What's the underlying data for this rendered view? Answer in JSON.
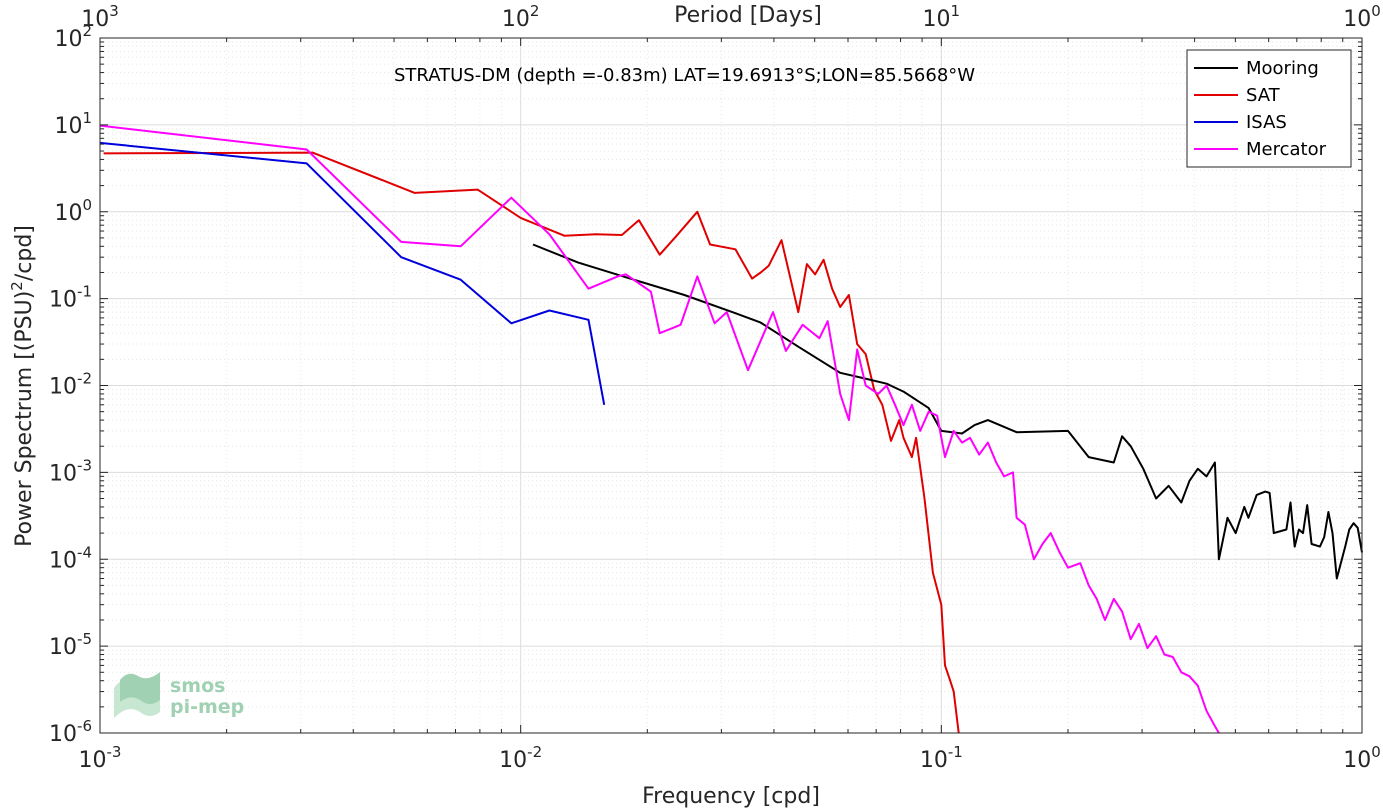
{
  "chart_data": {
    "type": "line",
    "title": "STRATUS-DM (depth =-0.83m) LAT=19.6913°S;LON=85.5668°W",
    "xlabel": "Frequency [cpd]",
    "ylabel_main": "Power Spectrum [(PSU)",
    "ylabel_sup": "2",
    "ylabel_tail": "/cpd]",
    "top_xlabel": "Period [Days]",
    "xscale": "log",
    "yscale": "log",
    "xlim": [
      0.001,
      1
    ],
    "ylim": [
      1e-06,
      100
    ],
    "grid": true,
    "legend_position": "top-right",
    "x_ticks": [
      {
        "value": 0.001,
        "base": "10",
        "exp": "-3"
      },
      {
        "value": 0.01,
        "base": "10",
        "exp": "-2"
      },
      {
        "value": 0.1,
        "base": "10",
        "exp": "-1"
      },
      {
        "value": 1,
        "base": "10",
        "exp": "0"
      }
    ],
    "y_ticks": [
      {
        "value": 1e-06,
        "base": "10",
        "exp": "-6"
      },
      {
        "value": 1e-05,
        "base": "10",
        "exp": "-5"
      },
      {
        "value": 0.0001,
        "base": "10",
        "exp": "-4"
      },
      {
        "value": 0.001,
        "base": "10",
        "exp": "-3"
      },
      {
        "value": 0.01,
        "base": "10",
        "exp": "-2"
      },
      {
        "value": 0.1,
        "base": "10",
        "exp": "-1"
      },
      {
        "value": 1,
        "base": "10",
        "exp": "0"
      },
      {
        "value": 10,
        "base": "10",
        "exp": "1"
      },
      {
        "value": 100,
        "base": "10",
        "exp": "2"
      }
    ],
    "top_ticks": [
      {
        "value": 0.001,
        "base": "10",
        "exp": "3"
      },
      {
        "value": 0.01,
        "base": "10",
        "exp": "2"
      },
      {
        "value": 0.1,
        "base": "10",
        "exp": "1"
      },
      {
        "value": 1,
        "base": "10",
        "exp": "0"
      }
    ],
    "series": [
      {
        "name": "Mooring",
        "color": "#000000",
        "points": [
          [
            0.0107,
            0.42
          ],
          [
            0.0137,
            0.26
          ],
          [
            0.0182,
            0.17
          ],
          [
            0.0245,
            0.11
          ],
          [
            0.0324,
            0.068
          ],
          [
            0.0372,
            0.053
          ],
          [
            0.0457,
            0.028
          ],
          [
            0.0575,
            0.014
          ],
          [
            0.066,
            0.012
          ],
          [
            0.0741,
            0.0105
          ],
          [
            0.0813,
            0.0085
          ],
          [
            0.0933,
            0.0055
          ],
          [
            0.1,
            0.003
          ],
          [
            0.112,
            0.0028
          ],
          [
            0.12,
            0.0035
          ],
          [
            0.129,
            0.004
          ],
          [
            0.151,
            0.0029
          ],
          [
            0.2,
            0.003
          ],
          [
            0.224,
            0.0015
          ],
          [
            0.257,
            0.0013
          ],
          [
            0.269,
            0.0026
          ],
          [
            0.282,
            0.002
          ],
          [
            0.302,
            0.0011
          ],
          [
            0.324,
            0.0005
          ],
          [
            0.347,
            0.0007
          ],
          [
            0.372,
            0.00045
          ],
          [
            0.389,
            0.0008
          ],
          [
            0.407,
            0.0011
          ],
          [
            0.427,
            0.0009
          ],
          [
            0.447,
            0.0013
          ],
          [
            0.457,
            0.0001
          ],
          [
            0.479,
            0.0003
          ],
          [
            0.501,
            0.0002
          ],
          [
            0.525,
            0.0004
          ],
          [
            0.537,
            0.0003
          ],
          [
            0.562,
            0.00055
          ],
          [
            0.589,
            0.0006
          ],
          [
            0.603,
            0.00058
          ],
          [
            0.617,
            0.0002
          ],
          [
            0.661,
            0.00022
          ],
          [
            0.676,
            0.00045
          ],
          [
            0.692,
            0.00014
          ],
          [
            0.708,
            0.00022
          ],
          [
            0.724,
            0.0002
          ],
          [
            0.741,
            0.00042
          ],
          [
            0.759,
            0.00015
          ],
          [
            0.794,
            0.00014
          ],
          [
            0.813,
            0.00018
          ],
          [
            0.832,
            0.00035
          ],
          [
            0.851,
            0.0002
          ],
          [
            0.871,
            6e-05
          ],
          [
            0.912,
            0.00014
          ],
          [
            0.933,
            0.00022
          ],
          [
            0.955,
            0.00026
          ],
          [
            0.977,
            0.00023
          ],
          [
            1.0,
            0.00012
          ]
        ]
      },
      {
        "name": "SAT",
        "color": "#e00000",
        "points": [
          [
            0.00102,
            4.7
          ],
          [
            0.0032,
            4.8
          ],
          [
            0.0056,
            1.65
          ],
          [
            0.0079,
            1.8
          ],
          [
            0.01,
            0.85
          ],
          [
            0.0127,
            0.53
          ],
          [
            0.0151,
            0.55
          ],
          [
            0.0174,
            0.54
          ],
          [
            0.0191,
            0.8
          ],
          [
            0.0214,
            0.32
          ],
          [
            0.0234,
            0.52
          ],
          [
            0.0263,
            1.0
          ],
          [
            0.0282,
            0.42
          ],
          [
            0.0324,
            0.37
          ],
          [
            0.0355,
            0.17
          ],
          [
            0.0372,
            0.2
          ],
          [
            0.0389,
            0.24
          ],
          [
            0.0417,
            0.47
          ],
          [
            0.0457,
            0.07
          ],
          [
            0.0479,
            0.25
          ],
          [
            0.0501,
            0.19
          ],
          [
            0.0525,
            0.28
          ],
          [
            0.055,
            0.13
          ],
          [
            0.0575,
            0.08
          ],
          [
            0.0603,
            0.11
          ],
          [
            0.0631,
            0.03
          ],
          [
            0.0661,
            0.023
          ],
          [
            0.0692,
            0.009
          ],
          [
            0.0724,
            0.006
          ],
          [
            0.0759,
            0.0023
          ],
          [
            0.0794,
            0.004
          ],
          [
            0.0813,
            0.0025
          ],
          [
            0.0851,
            0.0015
          ],
          [
            0.0871,
            0.0025
          ],
          [
            0.0912,
            0.0005
          ],
          [
            0.0955,
            7e-05
          ],
          [
            0.1,
            3e-05
          ],
          [
            0.102,
            6e-06
          ],
          [
            0.105,
            4e-06
          ],
          [
            0.107,
            3e-06
          ],
          [
            0.11,
            1e-06
          ]
        ]
      },
      {
        "name": "ISAS",
        "color": "#0000dd",
        "points": [
          [
            0.001,
            6.2
          ],
          [
            0.0031,
            3.6
          ],
          [
            0.0052,
            0.3
          ],
          [
            0.0072,
            0.165
          ],
          [
            0.0095,
            0.052
          ],
          [
            0.0117,
            0.073
          ],
          [
            0.0145,
            0.057
          ],
          [
            0.0158,
            0.006
          ]
        ]
      },
      {
        "name": "Mercator",
        "color": "#ff00ff",
        "points": [
          [
            0.001,
            9.8
          ],
          [
            0.0031,
            5.2
          ],
          [
            0.0052,
            0.45
          ],
          [
            0.0072,
            0.4
          ],
          [
            0.0095,
            1.45
          ],
          [
            0.0117,
            0.55
          ],
          [
            0.0145,
            0.13
          ],
          [
            0.017,
            0.18
          ],
          [
            0.0178,
            0.19
          ],
          [
            0.0204,
            0.12
          ],
          [
            0.0214,
            0.04
          ],
          [
            0.024,
            0.05
          ],
          [
            0.0263,
            0.18
          ],
          [
            0.0289,
            0.052
          ],
          [
            0.0309,
            0.07
          ],
          [
            0.0347,
            0.015
          ],
          [
            0.0398,
            0.07
          ],
          [
            0.0427,
            0.025
          ],
          [
            0.0468,
            0.05
          ],
          [
            0.0513,
            0.035
          ],
          [
            0.0537,
            0.055
          ],
          [
            0.0575,
            0.008
          ],
          [
            0.0603,
            0.004
          ],
          [
            0.0631,
            0.026
          ],
          [
            0.0661,
            0.01
          ],
          [
            0.0708,
            0.008
          ],
          [
            0.0741,
            0.01
          ],
          [
            0.0776,
            0.006
          ],
          [
            0.0813,
            0.0035
          ],
          [
            0.0851,
            0.006
          ],
          [
            0.0891,
            0.003
          ],
          [
            0.0933,
            0.005
          ],
          [
            0.0977,
            0.0045
          ],
          [
            0.102,
            0.0015
          ],
          [
            0.107,
            0.003
          ],
          [
            0.112,
            0.0022
          ],
          [
            0.117,
            0.0025
          ],
          [
            0.123,
            0.0016
          ],
          [
            0.129,
            0.0022
          ],
          [
            0.135,
            0.0013
          ],
          [
            0.141,
            0.0009
          ],
          [
            0.148,
            0.001
          ],
          [
            0.151,
            0.0003
          ],
          [
            0.158,
            0.00025
          ],
          [
            0.166,
            0.0001
          ],
          [
            0.174,
            0.00015
          ],
          [
            0.182,
            0.0002
          ],
          [
            0.191,
            0.00012
          ],
          [
            0.2,
            8e-05
          ],
          [
            0.214,
            9e-05
          ],
          [
            0.224,
            5e-05
          ],
          [
            0.234,
            3.5e-05
          ],
          [
            0.245,
            2e-05
          ],
          [
            0.257,
            3.5e-05
          ],
          [
            0.269,
            2.5e-05
          ],
          [
            0.282,
            1.2e-05
          ],
          [
            0.295,
            1.8e-05
          ],
          [
            0.309,
            9.5e-06
          ],
          [
            0.324,
            1.3e-05
          ],
          [
            0.339,
            8e-06
          ],
          [
            0.355,
            7.5e-06
          ],
          [
            0.372,
            5e-06
          ],
          [
            0.389,
            4.5e-06
          ],
          [
            0.407,
            3.5e-06
          ],
          [
            0.427,
            1.8e-06
          ],
          [
            0.447,
            1.2e-06
          ],
          [
            0.457,
            1e-06
          ]
        ]
      }
    ]
  },
  "logo": {
    "line1": "smos",
    "line2": "pi-mep"
  }
}
